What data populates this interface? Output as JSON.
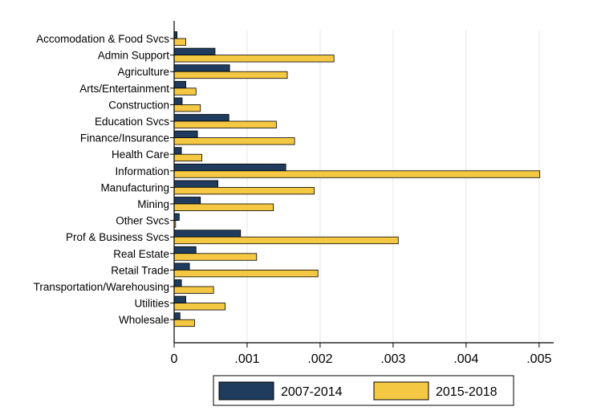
{
  "chart_data": {
    "type": "bar",
    "orientation": "horizontal",
    "title": "",
    "xlabel": "",
    "ylabel": "",
    "xlim": [
      0,
      0.0052
    ],
    "x_ticks": [
      0,
      0.001,
      0.002,
      0.003,
      0.004,
      0.005
    ],
    "x_tick_labels": [
      "0",
      ".001",
      ".002",
      ".003",
      ".004",
      ".005"
    ],
    "grid": "vertical",
    "legend_position": "bottom",
    "categories": [
      "Accomodation & Food Svcs",
      "Admin Support",
      "Agriculture",
      "Arts/Entertainment",
      "Construction",
      "Education Svcs",
      "Finance/Insurance",
      "Health Care",
      "Information",
      "Manufacturing",
      "Mining",
      "Other Svcs",
      "Prof & Business Svcs",
      "Real Estate",
      "Retail Trade",
      "Transportation/Warehousing",
      "Utilities",
      "Wholesale"
    ],
    "series": [
      {
        "name": "2007-2014",
        "color": "#1f3b5e",
        "values": [
          4e-05,
          0.00056,
          0.00076,
          0.00016,
          0.00011,
          0.00075,
          0.00032,
          0.0001,
          0.00153,
          0.0006,
          0.00036,
          7e-05,
          0.00091,
          0.0003,
          0.00021,
          0.0001,
          0.00016,
          8e-05
        ]
      },
      {
        "name": "2015-2018",
        "color": "#f4c842",
        "values": [
          0.00016,
          0.00219,
          0.00155,
          0.0003,
          0.00036,
          0.0014,
          0.00165,
          0.00038,
          0.00501,
          0.00192,
          0.00136,
          2e-05,
          0.00307,
          0.00113,
          0.00197,
          0.00054,
          0.0007,
          0.00028
        ]
      }
    ]
  }
}
